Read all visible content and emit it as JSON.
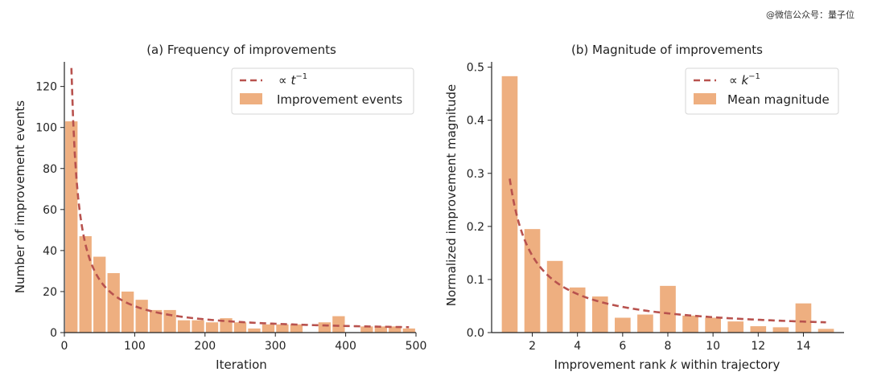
{
  "watermark": "@微信公众号：量子位",
  "chart_data": [
    {
      "type": "bar",
      "title": "(a) Frequency of improvements",
      "xlabel": "Iteration",
      "ylabel": "Number of improvement events",
      "xlim": [
        0,
        500
      ],
      "ylim": [
        0,
        132
      ],
      "xticks": [
        0,
        100,
        200,
        300,
        400,
        500
      ],
      "yticks": [
        0,
        20,
        40,
        60,
        80,
        100,
        120
      ],
      "bar_width": 17.5,
      "bars": {
        "name": "Improvement events",
        "x": [
          10,
          30,
          50,
          70,
          90,
          110,
          130,
          150,
          170,
          190,
          210,
          230,
          250,
          270,
          290,
          310,
          330,
          350,
          370,
          390,
          410,
          430,
          450,
          470,
          490
        ],
        "values": [
          103,
          47,
          37,
          29,
          20,
          16,
          11,
          11,
          6,
          6,
          5,
          7,
          5,
          2,
          4,
          4,
          4,
          0,
          5,
          8,
          0,
          3,
          3,
          3,
          2
        ]
      },
      "fit": {
        "name_prefix": "∝ ",
        "name_var": "t",
        "name_exp": "−1",
        "coefficient": 1290,
        "x_start": 10,
        "x_end": 490
      },
      "legend": "top-right",
      "grid": false,
      "colors": {
        "bar": "#EEAF80",
        "fit": "#B8524E"
      }
    },
    {
      "type": "bar",
      "title": "(b) Magnitude of improvements",
      "xlabel_pre": "Improvement rank ",
      "xlabel_var": "k",
      "xlabel_post": " within trajectory",
      "ylabel": "Normalized improvement magnitude",
      "xlim": [
        0.2,
        15.8
      ],
      "ylim": [
        0,
        0.51
      ],
      "xticks": [
        2,
        4,
        6,
        8,
        10,
        12,
        14
      ],
      "yticks": [
        "0.0",
        "0.1",
        "0.2",
        "0.3",
        "0.4",
        "0.5"
      ],
      "bar_width": 0.7,
      "bars": {
        "name": "Mean magnitude",
        "x": [
          1,
          2,
          3,
          4,
          5,
          6,
          7,
          8,
          9,
          10,
          11,
          12,
          13,
          14,
          15
        ],
        "values": [
          0.483,
          0.195,
          0.135,
          0.085,
          0.068,
          0.028,
          0.034,
          0.088,
          0.032,
          0.028,
          0.021,
          0.012,
          0.01,
          0.055,
          0.007
        ]
      },
      "fit": {
        "name_prefix": "∝ ",
        "name_var": "k",
        "name_exp": "−1",
        "coefficient": 0.29,
        "x_start": 1,
        "x_end": 15
      },
      "legend": "top-right",
      "grid": false,
      "colors": {
        "bar": "#EEAF80",
        "fit": "#B8524E"
      }
    }
  ]
}
